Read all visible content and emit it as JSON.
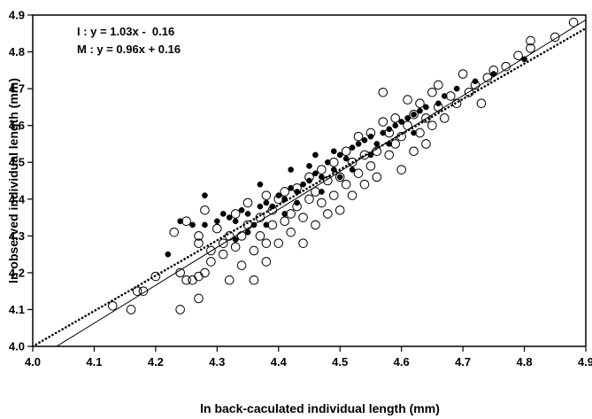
{
  "chart_data": {
    "type": "scatter",
    "xlabel": "ln back-caculated individual length (mm)",
    "ylabel": "ln observed individual length (mm)",
    "xlim": [
      4.0,
      4.9
    ],
    "ylim": [
      4.0,
      4.9
    ],
    "xticks": [
      "4.0",
      "4.1",
      "4.2",
      "4.3",
      "4.4",
      "4.5",
      "4.6",
      "4.7",
      "4.8",
      "4.9"
    ],
    "yticks": [
      "4.0",
      "4.1",
      "4.2",
      "4.3",
      "4.4",
      "4.5",
      "4.6",
      "4.7",
      "4.8",
      "4.9"
    ],
    "grid": false,
    "legend_position": "top-left",
    "equations": [
      "I : y = 1.03x -  0.16",
      "M : y = 0.96x + 0.16"
    ],
    "series": [
      {
        "marker": "open-circle",
        "line": {
          "style": "solid",
          "slope": 1.03,
          "intercept": -0.16
        },
        "points": [
          [
            4.13,
            4.11
          ],
          [
            4.16,
            4.1
          ],
          [
            4.17,
            4.15
          ],
          [
            4.18,
            4.15
          ],
          [
            4.2,
            4.19
          ],
          [
            4.23,
            4.31
          ],
          [
            4.24,
            4.1
          ],
          [
            4.24,
            4.2
          ],
          [
            4.25,
            4.18
          ],
          [
            4.25,
            4.34
          ],
          [
            4.26,
            4.18
          ],
          [
            4.27,
            4.19
          ],
          [
            4.27,
            4.28
          ],
          [
            4.27,
            4.3
          ],
          [
            4.27,
            4.13
          ],
          [
            4.28,
            4.2
          ],
          [
            4.28,
            4.37
          ],
          [
            4.29,
            4.23
          ],
          [
            4.29,
            4.26
          ],
          [
            4.3,
            4.32
          ],
          [
            4.31,
            4.25
          ],
          [
            4.31,
            4.28
          ],
          [
            4.32,
            4.3
          ],
          [
            4.32,
            4.18
          ],
          [
            4.33,
            4.27
          ],
          [
            4.33,
            4.36
          ],
          [
            4.34,
            4.22
          ],
          [
            4.34,
            4.3
          ],
          [
            4.35,
            4.33
          ],
          [
            4.35,
            4.39
          ],
          [
            4.36,
            4.18
          ],
          [
            4.36,
            4.26
          ],
          [
            4.37,
            4.3
          ],
          [
            4.37,
            4.35
          ],
          [
            4.38,
            4.23
          ],
          [
            4.38,
            4.28
          ],
          [
            4.38,
            4.41
          ],
          [
            4.39,
            4.33
          ],
          [
            4.39,
            4.37
          ],
          [
            4.4,
            4.28
          ],
          [
            4.4,
            4.4
          ],
          [
            4.41,
            4.34
          ],
          [
            4.41,
            4.42
          ],
          [
            4.42,
            4.36
          ],
          [
            4.42,
            4.31
          ],
          [
            4.43,
            4.38
          ],
          [
            4.43,
            4.43
          ],
          [
            4.44,
            4.35
          ],
          [
            4.44,
            4.28
          ],
          [
            4.45,
            4.4
          ],
          [
            4.45,
            4.46
          ],
          [
            4.46,
            4.33
          ],
          [
            4.46,
            4.42
          ],
          [
            4.47,
            4.39
          ],
          [
            4.47,
            4.48
          ],
          [
            4.48,
            4.36
          ],
          [
            4.48,
            4.45
          ],
          [
            4.49,
            4.41
          ],
          [
            4.49,
            4.5
          ],
          [
            4.5,
            4.37
          ],
          [
            4.5,
            4.46
          ],
          [
            4.51,
            4.44
          ],
          [
            4.51,
            4.53
          ],
          [
            4.52,
            4.41
          ],
          [
            4.52,
            4.5
          ],
          [
            4.53,
            4.47
          ],
          [
            4.53,
            4.57
          ],
          [
            4.54,
            4.44
          ],
          [
            4.54,
            4.52
          ],
          [
            4.55,
            4.49
          ],
          [
            4.55,
            4.58
          ],
          [
            4.56,
            4.46
          ],
          [
            4.56,
            4.53
          ],
          [
            4.57,
            4.69
          ],
          [
            4.57,
            4.61
          ],
          [
            4.58,
            4.52
          ],
          [
            4.58,
            4.58
          ],
          [
            4.59,
            4.55
          ],
          [
            4.59,
            4.62
          ],
          [
            4.6,
            4.48
          ],
          [
            4.6,
            4.57
          ],
          [
            4.61,
            4.6
          ],
          [
            4.61,
            4.67
          ],
          [
            4.62,
            4.53
          ],
          [
            4.62,
            4.63
          ],
          [
            4.63,
            4.58
          ],
          [
            4.63,
            4.66
          ],
          [
            4.64,
            4.55
          ],
          [
            4.64,
            4.62
          ],
          [
            4.65,
            4.69
          ],
          [
            4.65,
            4.6
          ],
          [
            4.66,
            4.65
          ],
          [
            4.66,
            4.71
          ],
          [
            4.67,
            4.62
          ],
          [
            4.68,
            4.68
          ],
          [
            4.69,
            4.66
          ],
          [
            4.7,
            4.74
          ],
          [
            4.71,
            4.69
          ],
          [
            4.72,
            4.71
          ],
          [
            4.73,
            4.66
          ],
          [
            4.74,
            4.73
          ],
          [
            4.75,
            4.75
          ],
          [
            4.77,
            4.76
          ],
          [
            4.79,
            4.79
          ],
          [
            4.81,
            4.81
          ],
          [
            4.81,
            4.83
          ],
          [
            4.85,
            4.84
          ],
          [
            4.88,
            4.88
          ]
        ]
      },
      {
        "marker": "filled-circle",
        "line": {
          "style": "dotted",
          "slope": 0.96,
          "intercept": 0.16
        },
        "points": [
          [
            4.22,
            4.25
          ],
          [
            4.24,
            4.34
          ],
          [
            4.26,
            4.33
          ],
          [
            4.28,
            4.33
          ],
          [
            4.3,
            4.34
          ],
          [
            4.31,
            4.36
          ],
          [
            4.32,
            4.35
          ],
          [
            4.33,
            4.34
          ],
          [
            4.34,
            4.37
          ],
          [
            4.35,
            4.36
          ],
          [
            4.36,
            4.33
          ],
          [
            4.37,
            4.38
          ],
          [
            4.38,
            4.39
          ],
          [
            4.39,
            4.38
          ],
          [
            4.4,
            4.41
          ],
          [
            4.41,
            4.4
          ],
          [
            4.42,
            4.43
          ],
          [
            4.43,
            4.42
          ],
          [
            4.44,
            4.44
          ],
          [
            4.45,
            4.45
          ],
          [
            4.45,
            4.49
          ],
          [
            4.46,
            4.47
          ],
          [
            4.47,
            4.46
          ],
          [
            4.48,
            4.5
          ],
          [
            4.49,
            4.48
          ],
          [
            4.49,
            4.53
          ],
          [
            4.5,
            4.52
          ],
          [
            4.51,
            4.51
          ],
          [
            4.52,
            4.54
          ],
          [
            4.53,
            4.55
          ],
          [
            4.54,
            4.56
          ],
          [
            4.55,
            4.57
          ],
          [
            4.56,
            4.55
          ],
          [
            4.57,
            4.58
          ],
          [
            4.58,
            4.59
          ],
          [
            4.59,
            4.6
          ],
          [
            4.6,
            4.61
          ],
          [
            4.61,
            4.62
          ],
          [
            4.62,
            4.63
          ],
          [
            4.63,
            4.64
          ],
          [
            4.64,
            4.65
          ],
          [
            4.66,
            4.66
          ],
          [
            4.67,
            4.68
          ],
          [
            4.69,
            4.7
          ],
          [
            4.72,
            4.72
          ],
          [
            4.75,
            4.74
          ],
          [
            4.8,
            4.78
          ],
          [
            4.33,
            4.29
          ],
          [
            4.35,
            4.31
          ],
          [
            4.38,
            4.33
          ],
          [
            4.41,
            4.36
          ],
          [
            4.43,
            4.39
          ],
          [
            4.47,
            4.42
          ],
          [
            4.5,
            4.46
          ],
          [
            4.28,
            4.41
          ],
          [
            4.37,
            4.44
          ],
          [
            4.42,
            4.48
          ],
          [
            4.46,
            4.52
          ],
          [
            4.52,
            4.48
          ],
          [
            4.55,
            4.52
          ],
          [
            4.58,
            4.55
          ],
          [
            4.62,
            4.58
          ]
        ]
      }
    ]
  }
}
